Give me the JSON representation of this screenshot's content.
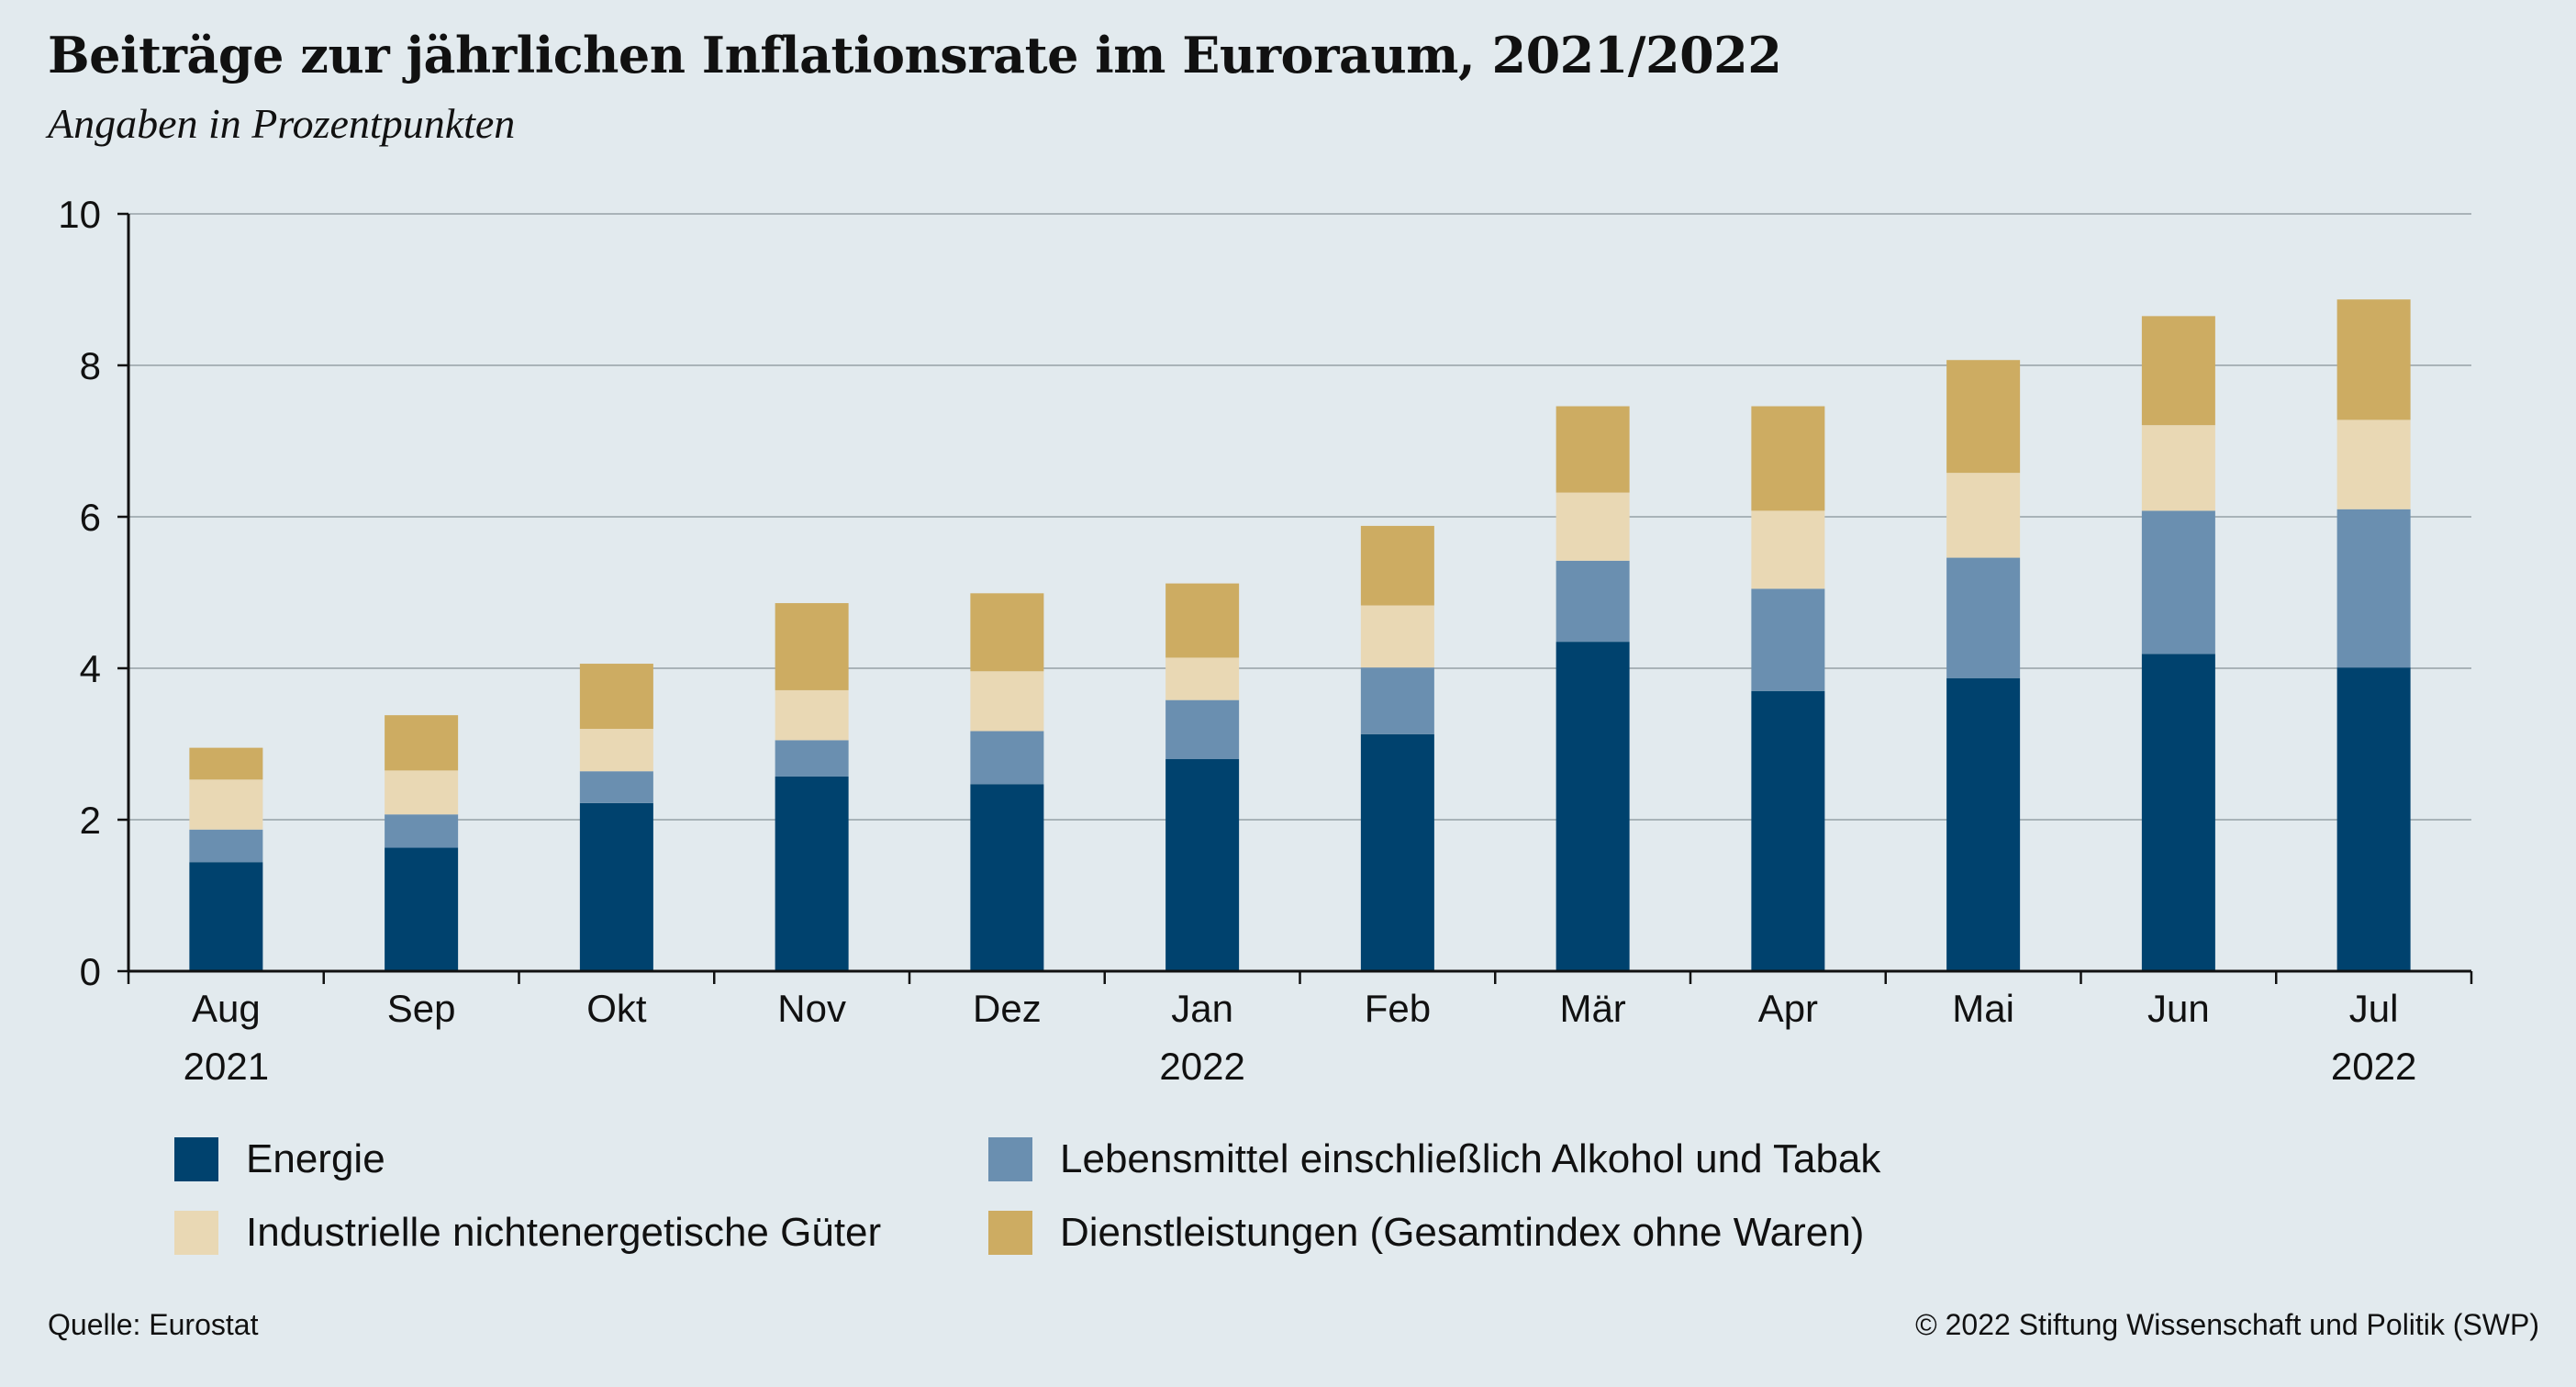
{
  "title": "Beiträge zur jährlichen Inflationsrate im Euroraum, 2021/2022",
  "subtitle": "Angaben in Prozentpunkten",
  "source": "Quelle: Eurostat",
  "copyright": "© 2022 Stiftung Wissenschaft und Politik (SWP)",
  "legend": [
    {
      "label": "Energie",
      "color": "#00426e"
    },
    {
      "label": "Lebensmittel einschließlich Alkohol und Tabak",
      "color": "#6a8fb0"
    },
    {
      "label": "Industrielle nichtenergetische Güter",
      "color": "#e9d8b4"
    },
    {
      "label": "Dienstleistungen (Gesamtindex ohne Waren)",
      "color": "#cdac62"
    }
  ],
  "chart_data": {
    "type": "bar",
    "stacked": true,
    "title": "Beiträge zur jährlichen Inflationsrate im Euroraum, 2021/2022",
    "subtitle": "Angaben in Prozentpunkten",
    "categories": [
      "Aug",
      "Sep",
      "Okt",
      "Nov",
      "Dez",
      "Jan",
      "Feb",
      "Mär",
      "Apr",
      "Mai",
      "Jun",
      "Jul"
    ],
    "category_years": [
      "2021",
      "",
      "",
      "",
      "",
      "2022",
      "",
      "",
      "",
      "",
      "",
      "2022"
    ],
    "ylim": [
      0,
      10
    ],
    "yticks": [
      0,
      2,
      4,
      6,
      8,
      10
    ],
    "grid": true,
    "series": [
      {
        "name": "Energie",
        "color": "#00426e",
        "values": [
          1.44,
          1.63,
          2.22,
          2.57,
          2.47,
          2.8,
          3.13,
          4.35,
          3.7,
          3.87,
          4.19,
          4.01
        ]
      },
      {
        "name": "Lebensmittel einschließlich Alkohol und Tabak",
        "color": "#6a8fb0",
        "values": [
          0.43,
          0.44,
          0.42,
          0.48,
          0.7,
          0.78,
          0.88,
          1.07,
          1.35,
          1.59,
          1.89,
          2.09
        ]
      },
      {
        "name": "Industrielle nichtenergetische Güter",
        "color": "#e9d8b4",
        "values": [
          0.66,
          0.58,
          0.56,
          0.66,
          0.79,
          0.56,
          0.82,
          0.9,
          1.03,
          1.12,
          1.13,
          1.18
        ]
      },
      {
        "name": "Dienstleistungen (Gesamtindex ohne Waren)",
        "color": "#cdac62",
        "values": [
          0.42,
          0.73,
          0.86,
          1.15,
          1.03,
          0.98,
          1.05,
          1.14,
          1.38,
          1.49,
          1.44,
          1.59
        ]
      }
    ]
  }
}
